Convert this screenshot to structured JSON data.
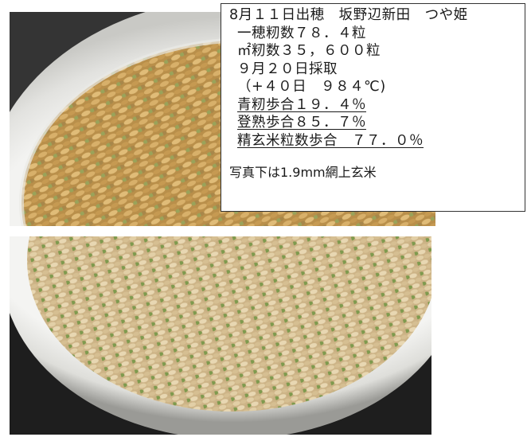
{
  "info": {
    "line1": "8月１１日出穂　坂野辺新田　つや姫",
    "line2": "一穂籾数７８．４粒",
    "line3": "㎡籾数３５，６００粒",
    "line4": "９月２０日採取",
    "line5": "（+４０日　９８４℃)",
    "line6": "青籾歩合１９．４％",
    "line7": "登熟歩合８５．７％",
    "line8": "精玄米粒数歩合　７７．０％",
    "line9": "写真下は1.9mm網上玄米"
  },
  "colors": {
    "paddy_grain": "#c9a25a",
    "green_grain": "#8fa65a",
    "brown_rice": "#d8c39a",
    "bowl": "#f2f2f0"
  }
}
